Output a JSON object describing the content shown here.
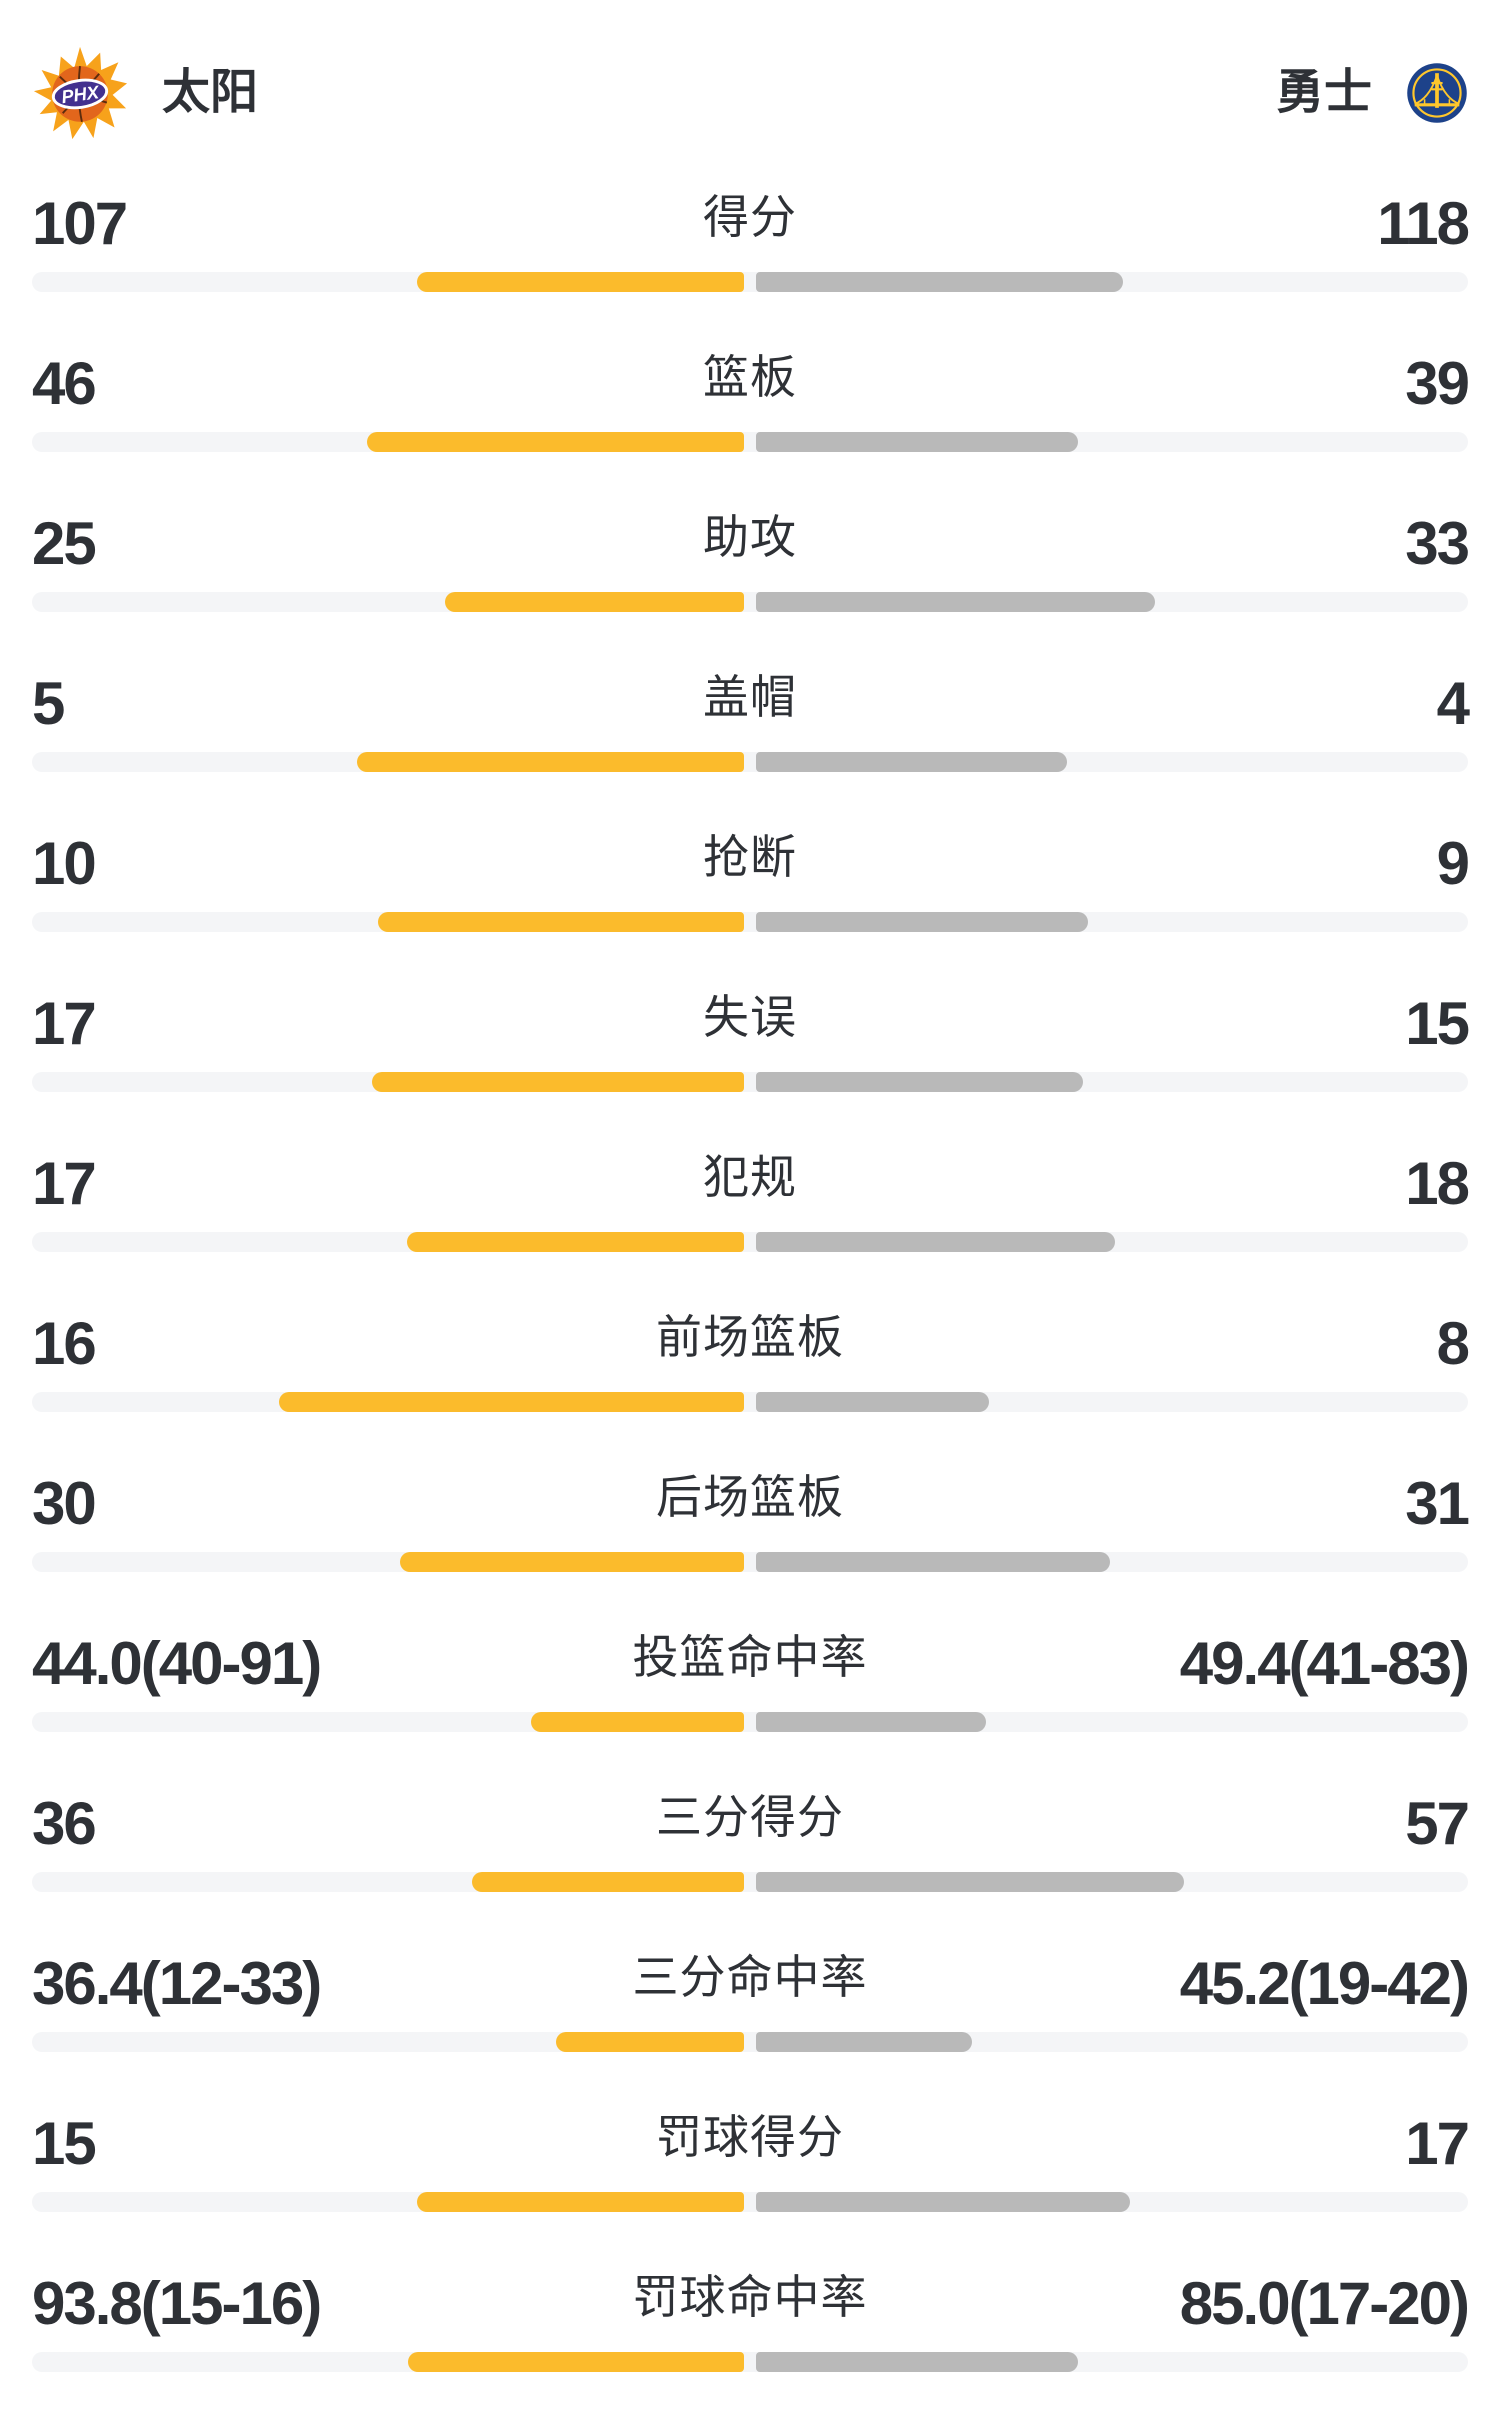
{
  "header": {
    "home": {
      "name": "太阳",
      "logo_icon": "phoenix-suns-logo"
    },
    "away": {
      "name": "勇士",
      "logo_icon": "golden-state-warriors-logo"
    }
  },
  "colors": {
    "home_bar": "#FBBB2C",
    "away_bar": "#B9B9B9",
    "bar_track": "#F4F5F7",
    "text": "#2E3136",
    "background": "#FFFFFF",
    "phx_orange": "#F7A21B",
    "phx_ball": "#E2661C",
    "phx_purple": "#43318F",
    "gsw_blue": "#1D428A",
    "gsw_gold": "#FFC72C"
  },
  "chart_data": {
    "type": "bar",
    "variant": "diverging-horizontal-comparison",
    "teams": [
      "太阳",
      "勇士"
    ],
    "home_side": "left",
    "away_side": "right",
    "bar_pct_note": "bar_pct values are bar length as percent of half track width, growing outward from center",
    "rows": [
      {
        "label": "得分",
        "home_display": "107",
        "away_display": "118",
        "home_value": 107,
        "away_value": 118,
        "home_bar_pct": 46.0,
        "away_bar_pct": 51.6
      },
      {
        "label": "篮板",
        "home_display": "46",
        "away_display": "39",
        "home_value": 46,
        "away_value": 39,
        "home_bar_pct": 53.0,
        "away_bar_pct": 45.3
      },
      {
        "label": "助攻",
        "home_display": "25",
        "away_display": "33",
        "home_value": 25,
        "away_value": 33,
        "home_bar_pct": 42.1,
        "away_bar_pct": 56.1
      },
      {
        "label": "盖帽",
        "home_display": "5",
        "away_display": "4",
        "home_value": 5,
        "away_value": 4,
        "home_bar_pct": 54.4,
        "away_bar_pct": 43.8
      },
      {
        "label": "抢断",
        "home_display": "10",
        "away_display": "9",
        "home_value": 10,
        "away_value": 9,
        "home_bar_pct": 51.5,
        "away_bar_pct": 46.7
      },
      {
        "label": "失误",
        "home_display": "17",
        "away_display": "15",
        "home_value": 17,
        "away_value": 15,
        "home_bar_pct": 52.3,
        "away_bar_pct": 46.0
      },
      {
        "label": "犯规",
        "home_display": "17",
        "away_display": "18",
        "home_value": 17,
        "away_value": 18,
        "home_bar_pct": 47.4,
        "away_bar_pct": 50.5
      },
      {
        "label": "前场篮板",
        "home_display": "16",
        "away_display": "8",
        "home_value": 16,
        "away_value": 8,
        "home_bar_pct": 65.4,
        "away_bar_pct": 32.8
      },
      {
        "label": "后场篮板",
        "home_display": "30",
        "away_display": "31",
        "home_value": 30,
        "away_value": 31,
        "home_bar_pct": 48.4,
        "away_bar_pct": 49.8
      },
      {
        "label": "投篮命中率",
        "home_display": "44.0(40-91)",
        "away_display": "49.4(41-83)",
        "home_value": 44.0,
        "away_value": 49.4,
        "home_made_attempt": "40-91",
        "away_made_attempt": "41-83",
        "home_bar_pct": 30.0,
        "away_bar_pct": 32.4
      },
      {
        "label": "三分得分",
        "home_display": "36",
        "away_display": "57",
        "home_value": 36,
        "away_value": 57,
        "home_bar_pct": 38.2,
        "away_bar_pct": 60.2
      },
      {
        "label": "三分命中率",
        "home_display": "36.4(12-33)",
        "away_display": "45.2(19-42)",
        "home_value": 36.4,
        "away_value": 45.2,
        "home_made_attempt": "12-33",
        "away_made_attempt": "19-42",
        "home_bar_pct": 26.4,
        "away_bar_pct": 30.4
      },
      {
        "label": "罚球得分",
        "home_display": "15",
        "away_display": "17",
        "home_value": 15,
        "away_value": 17,
        "home_bar_pct": 46.0,
        "away_bar_pct": 52.6
      },
      {
        "label": "罚球命中率",
        "home_display": "93.8(15-16)",
        "away_display": "85.0(17-20)",
        "home_value": 93.8,
        "away_value": 85.0,
        "home_made_attempt": "15-16",
        "away_made_attempt": "17-20",
        "home_bar_pct": 47.3,
        "away_bar_pct": 45.3
      }
    ]
  }
}
